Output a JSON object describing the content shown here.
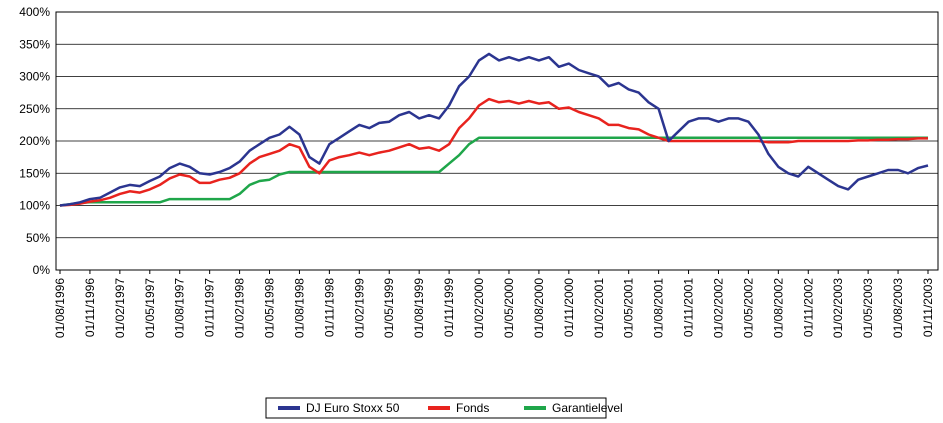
{
  "chart_data": {
    "type": "line",
    "categories": [
      "01/08/1996",
      null,
      null,
      "01/11/1996",
      null,
      null,
      "01/02/1997",
      null,
      null,
      "01/05/1997",
      null,
      null,
      "01/08/1997",
      null,
      null,
      "01/11/1997",
      null,
      null,
      "01/02/1998",
      null,
      null,
      "01/05/1998",
      null,
      null,
      "01/08/1998",
      null,
      null,
      "01/11/1998",
      null,
      null,
      "01/02/1999",
      null,
      null,
      "01/05/1999",
      null,
      null,
      "01/08/1999",
      null,
      null,
      "01/11/1999",
      null,
      null,
      "01/02/2000",
      null,
      null,
      "01/05/2000",
      null,
      null,
      "01/08/2000",
      null,
      null,
      "01/11/2000",
      null,
      null,
      "01/02/2001",
      null,
      null,
      "01/05/2001",
      null,
      null,
      "01/08/2001",
      null,
      null,
      "01/11/2001",
      null,
      null,
      "01/02/2002",
      null,
      null,
      "01/05/2002",
      null,
      null,
      "01/08/2002",
      null,
      null,
      "01/11/2002",
      null,
      null,
      "01/02/2003",
      null,
      null,
      "01/05/2003",
      null,
      null,
      "01/08/2003",
      null,
      null,
      "01/11/2003"
    ],
    "series": [
      {
        "name": "DJ Euro Stoxx 50",
        "color": "#2b3590",
        "values": [
          100,
          102,
          105,
          110,
          112,
          120,
          128,
          132,
          130,
          138,
          145,
          158,
          165,
          160,
          150,
          148,
          152,
          158,
          168,
          185,
          195,
          205,
          210,
          222,
          210,
          175,
          165,
          195,
          205,
          215,
          225,
          220,
          228,
          230,
          240,
          245,
          235,
          240,
          235,
          255,
          285,
          300,
          325,
          335,
          325,
          330,
          325,
          330,
          325,
          330,
          315,
          320,
          310,
          305,
          300,
          285,
          290,
          280,
          275,
          260,
          250,
          200,
          215,
          230,
          235,
          235,
          230,
          235,
          235,
          230,
          210,
          180,
          160,
          150,
          145,
          160,
          150,
          140,
          130,
          125,
          140,
          145,
          150,
          155,
          155,
          150,
          158,
          162
        ]
      },
      {
        "name": "Fonds",
        "color": "#e8231e",
        "values": [
          100,
          101,
          103,
          106,
          108,
          112,
          118,
          122,
          120,
          125,
          132,
          142,
          148,
          145,
          135,
          135,
          140,
          143,
          150,
          165,
          175,
          180,
          185,
          195,
          190,
          160,
          150,
          170,
          175,
          178,
          182,
          178,
          182,
          185,
          190,
          195,
          188,
          190,
          185,
          195,
          220,
          235,
          255,
          265,
          260,
          262,
          258,
          262,
          258,
          260,
          250,
          252,
          245,
          240,
          235,
          225,
          225,
          220,
          218,
          210,
          205,
          200,
          200,
          200,
          200,
          200,
          200,
          200,
          200,
          200,
          200,
          198,
          198,
          198,
          200,
          200,
          200,
          200,
          200,
          200,
          201,
          201,
          202,
          202,
          203,
          203,
          204,
          204
        ]
      },
      {
        "name": "Garantielevel",
        "color": "#1fa64a",
        "values": [
          100,
          102,
          104,
          105,
          105,
          105,
          105,
          105,
          105,
          105,
          105,
          110,
          110,
          110,
          110,
          110,
          110,
          110,
          118,
          132,
          138,
          140,
          148,
          152,
          152,
          152,
          152,
          152,
          152,
          152,
          152,
          152,
          152,
          152,
          152,
          152,
          152,
          152,
          152,
          165,
          178,
          195,
          205,
          205,
          205,
          205,
          205,
          205,
          205,
          205,
          205,
          205,
          205,
          205,
          205,
          205,
          205,
          205,
          205,
          205,
          205,
          205,
          205,
          205,
          205,
          205,
          205,
          205,
          205,
          205,
          205,
          205,
          205,
          205,
          205,
          205,
          205,
          205,
          205,
          205,
          205,
          205,
          205,
          205,
          205,
          205,
          205,
          205
        ]
      }
    ],
    "ylim": [
      0,
      400
    ],
    "yticks": [
      {
        "value": 0,
        "label": "0%"
      },
      {
        "value": 50,
        "label": "50%"
      },
      {
        "value": 100,
        "label": "100%"
      },
      {
        "value": 150,
        "label": "150%"
      },
      {
        "value": 200,
        "label": "200%"
      },
      {
        "value": 250,
        "label": "250%"
      },
      {
        "value": 300,
        "label": "300%"
      },
      {
        "value": 350,
        "label": "350%"
      },
      {
        "value": 400,
        "label": "400%"
      }
    ],
    "grid": true,
    "legend": "bottom"
  }
}
